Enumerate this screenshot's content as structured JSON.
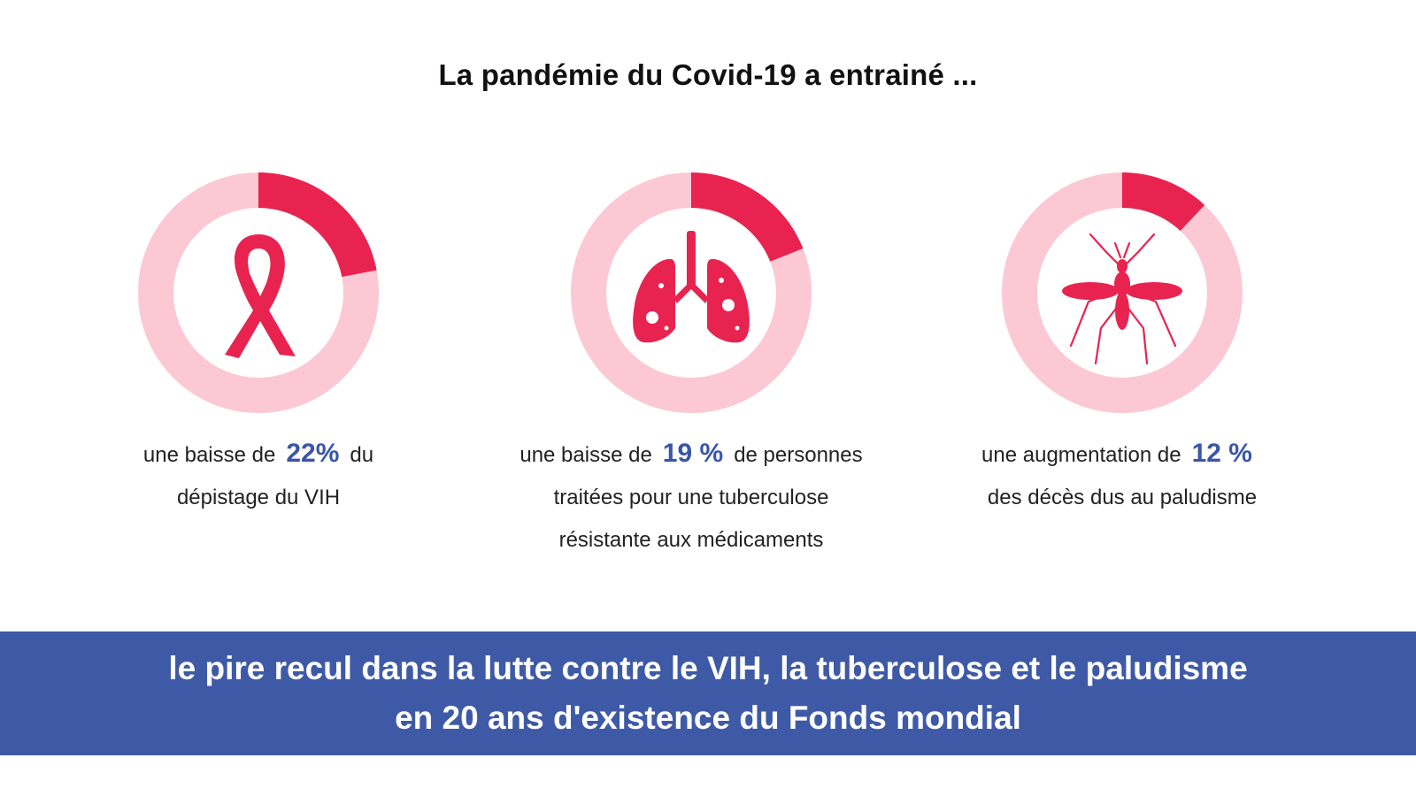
{
  "title": "La pandémie du Covid-19 a entrainé  ...",
  "colors": {
    "accent": "#e8234f",
    "track": "#fbc8d3",
    "stat": "#3a56a8",
    "banner": "#3e5aa6"
  },
  "chart_data": [
    {
      "type": "pie",
      "icon": "ribbon-icon",
      "values": [
        22
      ],
      "max": 100,
      "caption": {
        "before": "une baisse de",
        "value_text": "22%",
        "after": "du",
        "line2": "dépistage du VIH",
        "line3": ""
      }
    },
    {
      "type": "pie",
      "icon": "lungs-icon",
      "values": [
        19
      ],
      "max": 100,
      "caption": {
        "before": "une baisse de",
        "value_text": "19 %",
        "after": "de personnes",
        "line2": "traitées pour une tuberculose",
        "line3": "résistante aux médicaments"
      }
    },
    {
      "type": "pie",
      "icon": "mosquito-icon",
      "values": [
        12
      ],
      "max": 100,
      "caption": {
        "before": "une augmentation de",
        "value_text": "12 %",
        "after": "",
        "line2": "des décès dus au paludisme",
        "line3": ""
      }
    }
  ],
  "banner": {
    "line1": "le pire recul dans la lutte contre le VIH, la tuberculose et le paludisme",
    "line2": "en 20 ans d'existence du Fonds mondial"
  }
}
